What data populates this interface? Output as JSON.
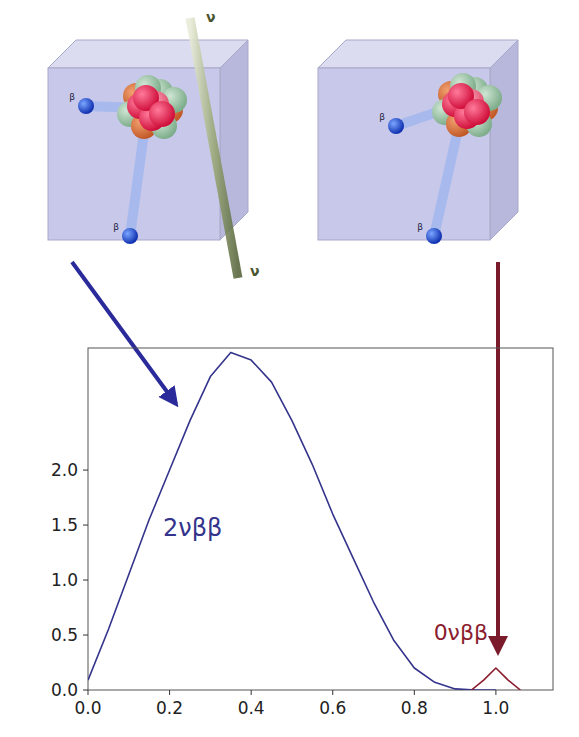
{
  "chart_data": {
    "type": "line",
    "series": [
      {
        "name": "2νββ",
        "color": "#34348c",
        "x": [
          0,
          0.05,
          0.1,
          0.15,
          0.2,
          0.25,
          0.3,
          0.35,
          0.4,
          0.45,
          0.5,
          0.55,
          0.6,
          0.65,
          0.7,
          0.75,
          0.8,
          0.85,
          0.9,
          0.95,
          1.0
        ],
        "values": [
          0.09,
          0.55,
          1.05,
          1.55,
          2.0,
          2.45,
          2.85,
          3.07,
          3.0,
          2.8,
          2.45,
          2.05,
          1.6,
          1.2,
          0.8,
          0.45,
          0.2,
          0.07,
          0.01,
          0,
          0
        ]
      },
      {
        "name": "0νββ",
        "color": "#8b1c2e",
        "x": [
          0.94,
          0.97,
          1.0,
          1.03,
          1.06
        ],
        "values": [
          0,
          0.09,
          0.2,
          0.09,
          0
        ]
      }
    ],
    "xlim": [
      0,
      1.14
    ],
    "ylim": [
      0,
      3.11
    ],
    "xticks": [
      {
        "value": 0,
        "label": "0.0"
      },
      {
        "value": 0.2,
        "label": "0.2"
      },
      {
        "value": 0.4,
        "label": "0.4"
      },
      {
        "value": 0.6,
        "label": "0.6"
      },
      {
        "value": 0.8,
        "label": "0.8"
      },
      {
        "value": 1.0,
        "label": "1.0"
      }
    ],
    "yticks": [
      {
        "value": 0,
        "label": "0.0"
      },
      {
        "value": 0.5,
        "label": "0.5"
      },
      {
        "value": 1.0,
        "label": "1.0"
      },
      {
        "value": 1.5,
        "label": "1.5"
      },
      {
        "value": 2.0,
        "label": "2.0"
      }
    ],
    "grid": false
  },
  "illustration": {
    "left_box": {
      "electron_labels": [
        "β",
        "β"
      ],
      "neutrino_labels": [
        "ν",
        "ν"
      ]
    },
    "right_box": {
      "electron_labels": [
        "β",
        "β"
      ]
    }
  }
}
